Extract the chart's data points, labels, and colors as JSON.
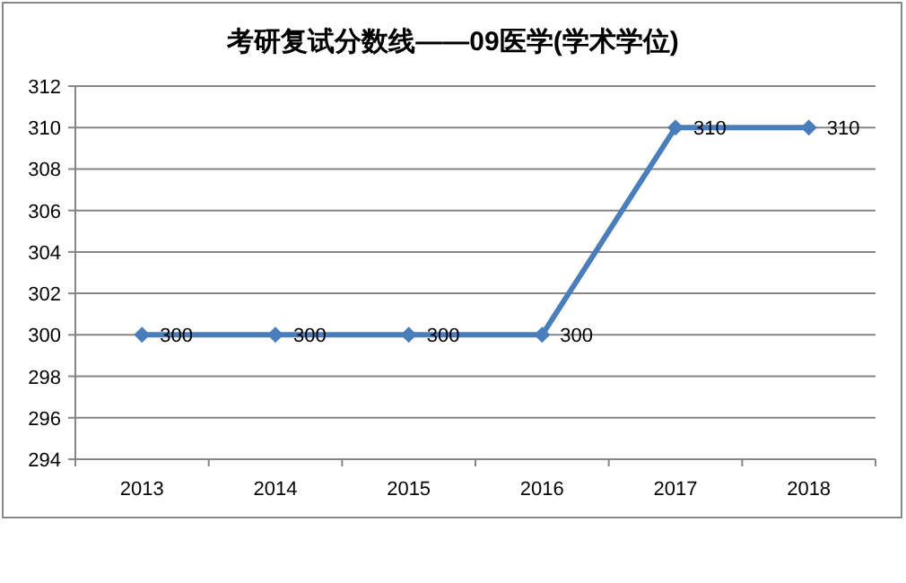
{
  "chart_data": {
    "type": "line",
    "title": "考研复试分数线——09医学(学术学位)",
    "categories": [
      "2013",
      "2014",
      "2015",
      "2016",
      "2017",
      "2018"
    ],
    "series": [
      {
        "color": "#4a7ebb",
        "values": [
          300,
          300,
          300,
          300,
          310,
          310
        ]
      }
    ],
    "ylim": [
      294,
      312
    ],
    "yticks": [
      294,
      296,
      298,
      300,
      302,
      304,
      306,
      308,
      310,
      312
    ],
    "grid": "y",
    "marker": "diamond",
    "data_labels": true
  }
}
